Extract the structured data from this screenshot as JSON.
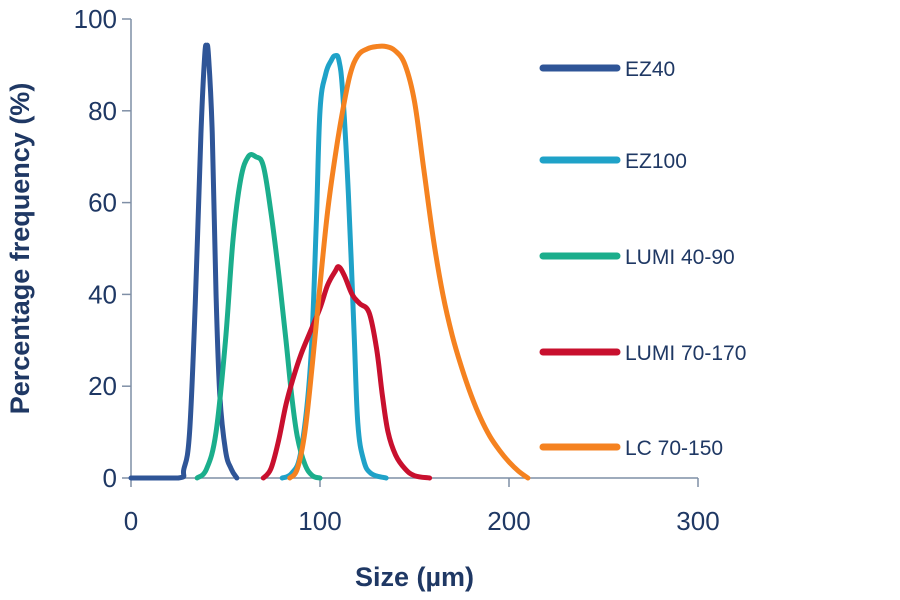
{
  "chart_data": {
    "type": "line",
    "title": "",
    "xlabel": "Size (µm)",
    "ylabel": "Percentage frequency (%)",
    "xlim": [
      0,
      300
    ],
    "ylim": [
      0,
      100
    ],
    "xticks": [
      0,
      100,
      200,
      300
    ],
    "yticks": [
      0,
      20,
      40,
      60,
      80,
      100
    ],
    "grid": false,
    "legend_position": "right",
    "series": [
      {
        "name": "EZ40",
        "color": "#2F5597",
        "points": [
          [
            0,
            0
          ],
          [
            25,
            0
          ],
          [
            28,
            2
          ],
          [
            31,
            10
          ],
          [
            34,
            38
          ],
          [
            37,
            75
          ],
          [
            39,
            92
          ],
          [
            40,
            94
          ],
          [
            41,
            92
          ],
          [
            43,
            75
          ],
          [
            45,
            40
          ],
          [
            47,
            18
          ],
          [
            50,
            6
          ],
          [
            53,
            2
          ],
          [
            56,
            0
          ]
        ]
      },
      {
        "name": "EZ100",
        "color": "#1FA2C8",
        "points": [
          [
            80,
            0
          ],
          [
            85,
            1
          ],
          [
            90,
            6
          ],
          [
            95,
            25
          ],
          [
            98,
            55
          ],
          [
            100,
            80
          ],
          [
            103,
            88
          ],
          [
            106,
            91
          ],
          [
            108,
            92
          ],
          [
            110,
            91
          ],
          [
            112,
            84
          ],
          [
            115,
            62
          ],
          [
            118,
            32
          ],
          [
            120,
            12
          ],
          [
            123,
            4
          ],
          [
            127,
            1
          ],
          [
            135,
            0
          ]
        ]
      },
      {
        "name": "LUMI 40-90",
        "color": "#1BAE8C",
        "points": [
          [
            35,
            0
          ],
          [
            40,
            2
          ],
          [
            45,
            10
          ],
          [
            50,
            30
          ],
          [
            54,
            52
          ],
          [
            58,
            65
          ],
          [
            62,
            70
          ],
          [
            66,
            70
          ],
          [
            70,
            68
          ],
          [
            74,
            58
          ],
          [
            78,
            45
          ],
          [
            82,
            30
          ],
          [
            85,
            18
          ],
          [
            88,
            9
          ],
          [
            92,
            3
          ],
          [
            96,
            0.5
          ],
          [
            100,
            0
          ]
        ]
      },
      {
        "name": "LUMI 70-170",
        "color": "#C8102E",
        "points": [
          [
            70,
            0
          ],
          [
            74,
            2
          ],
          [
            78,
            8
          ],
          [
            82,
            16
          ],
          [
            86,
            22
          ],
          [
            90,
            27
          ],
          [
            95,
            32
          ],
          [
            100,
            37
          ],
          [
            104,
            42
          ],
          [
            108,
            45
          ],
          [
            110,
            46
          ],
          [
            113,
            44
          ],
          [
            117,
            40
          ],
          [
            121,
            38
          ],
          [
            126,
            36
          ],
          [
            130,
            28
          ],
          [
            133,
            18
          ],
          [
            136,
            10
          ],
          [
            140,
            5
          ],
          [
            145,
            2
          ],
          [
            150,
            0.5
          ],
          [
            158,
            0
          ]
        ]
      },
      {
        "name": "LC 70-150",
        "color": "#F58220",
        "points": [
          [
            84,
            0
          ],
          [
            88,
            2
          ],
          [
            92,
            10
          ],
          [
            96,
            25
          ],
          [
            100,
            42
          ],
          [
            104,
            58
          ],
          [
            108,
            70
          ],
          [
            112,
            80
          ],
          [
            116,
            88
          ],
          [
            120,
            92
          ],
          [
            125,
            93.5
          ],
          [
            130,
            94
          ],
          [
            135,
            94
          ],
          [
            140,
            93
          ],
          [
            145,
            90
          ],
          [
            150,
            82
          ],
          [
            155,
            67
          ],
          [
            160,
            52
          ],
          [
            165,
            40
          ],
          [
            170,
            31
          ],
          [
            175,
            24
          ],
          [
            180,
            18
          ],
          [
            185,
            13
          ],
          [
            190,
            9
          ],
          [
            195,
            6
          ],
          [
            200,
            3.5
          ],
          [
            205,
            1.5
          ],
          [
            210,
            0
          ]
        ]
      }
    ]
  }
}
